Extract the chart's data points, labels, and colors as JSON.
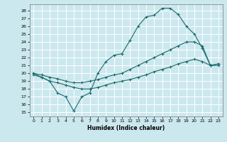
{
  "xlabel": "Humidex (Indice chaleur)",
  "background_color": "#cce8ef",
  "grid_color": "#ffffff",
  "line_color": "#1a6b6b",
  "xlim": [
    -0.5,
    23.5
  ],
  "ylim": [
    14.5,
    28.8
  ],
  "xticks": [
    0,
    1,
    2,
    3,
    4,
    5,
    6,
    7,
    8,
    9,
    10,
    11,
    12,
    13,
    14,
    15,
    16,
    17,
    18,
    19,
    20,
    21,
    22,
    23
  ],
  "yticks": [
    15,
    16,
    17,
    18,
    19,
    20,
    21,
    22,
    23,
    24,
    25,
    26,
    27,
    28
  ],
  "line1_x": [
    0,
    1,
    2,
    3,
    4,
    5,
    6,
    7,
    8,
    9,
    10,
    11,
    12,
    13,
    14,
    15,
    16,
    17,
    18,
    19,
    20,
    21,
    22,
    23
  ],
  "line1_y": [
    19.8,
    19.5,
    19.0,
    17.5,
    17.0,
    15.2,
    17.0,
    17.5,
    20.0,
    21.5,
    22.3,
    22.5,
    24.2,
    26.0,
    27.2,
    27.4,
    28.3,
    28.3,
    27.5,
    26.0,
    25.0,
    23.2,
    21.0,
    21.0
  ],
  "line2_x": [
    0,
    1,
    2,
    3,
    4,
    5,
    6,
    7,
    8,
    9,
    10,
    11,
    12,
    13,
    14,
    15,
    16,
    17,
    18,
    19,
    20,
    21,
    22,
    23
  ],
  "line2_y": [
    20.0,
    19.8,
    19.5,
    19.3,
    19.0,
    18.8,
    18.8,
    19.0,
    19.2,
    19.5,
    19.8,
    20.0,
    20.5,
    21.0,
    21.5,
    22.0,
    22.5,
    23.0,
    23.5,
    24.0,
    24.0,
    23.5,
    21.0,
    21.2
  ],
  "line3_x": [
    0,
    1,
    2,
    3,
    4,
    5,
    6,
    7,
    8,
    9,
    10,
    11,
    12,
    13,
    14,
    15,
    16,
    17,
    18,
    19,
    20,
    21,
    22,
    23
  ],
  "line3_y": [
    20.0,
    19.5,
    19.0,
    18.8,
    18.5,
    18.2,
    18.0,
    18.0,
    18.2,
    18.5,
    18.8,
    19.0,
    19.2,
    19.5,
    19.8,
    20.2,
    20.5,
    20.8,
    21.2,
    21.5,
    21.8,
    21.5,
    21.0,
    21.2
  ]
}
